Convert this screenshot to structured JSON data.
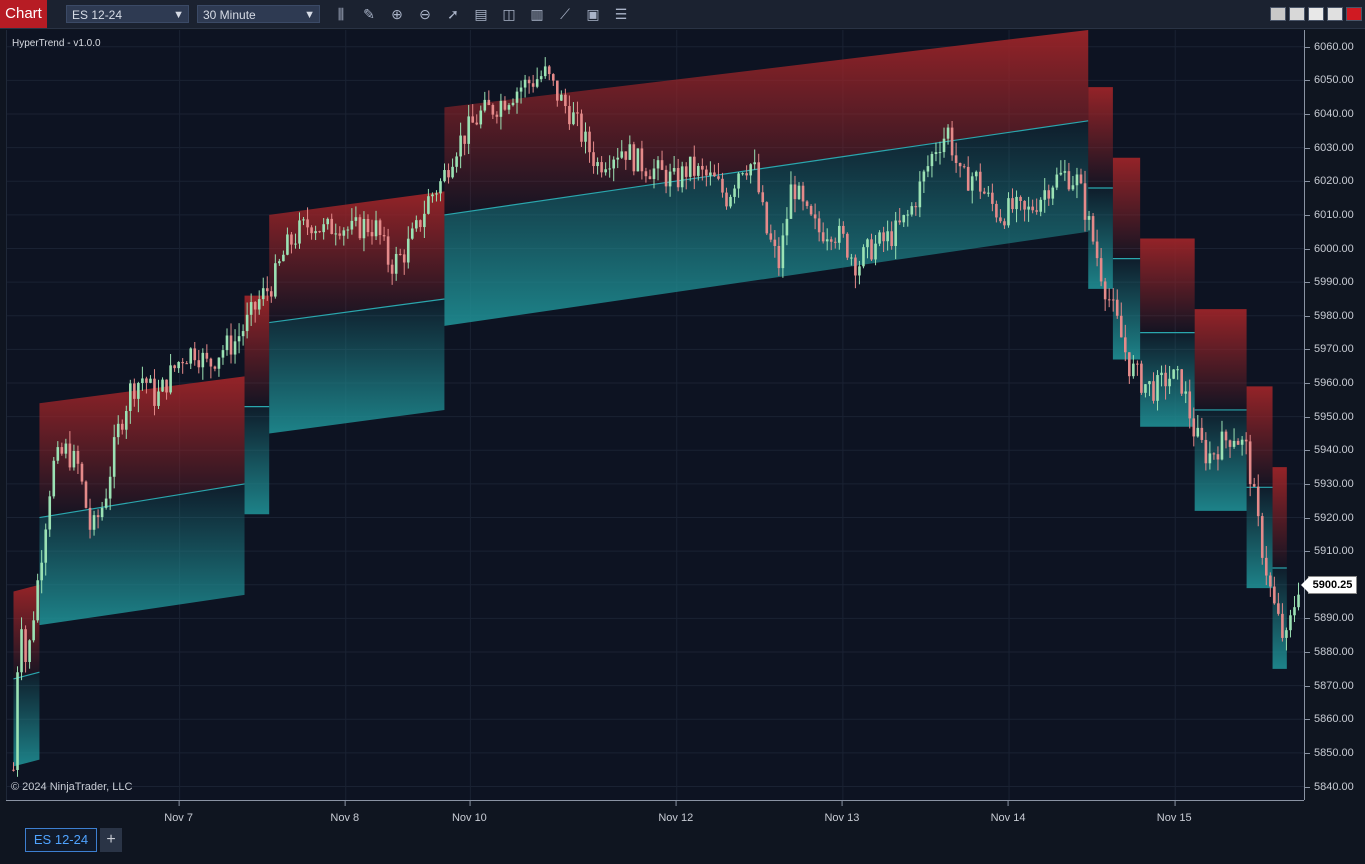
{
  "toolbar": {
    "title": "Chart",
    "instrument": "ES 12-24",
    "interval": "30 Minute",
    "icons": [
      "bar-type-icon",
      "pencil-icon",
      "zoom-in-icon",
      "zoom-out-icon",
      "pointer-icon",
      "data-box-icon",
      "properties-icon",
      "indicators-icon",
      "strategies-icon",
      "templates-icon",
      "list-icon"
    ],
    "window_button_colors": [
      "#c8c8c8",
      "#d8d8d8",
      "#e8e8e8",
      "#e0e0e0",
      "#d01a22"
    ]
  },
  "chart": {
    "indicator_label": "HyperTrend - v1.0.0",
    "copyright": "© 2024 NinjaTrader, LLC",
    "last_price": "5900.25",
    "colors": {
      "background": "#0d1322",
      "bear_band": "#9b2428",
      "bull_band": "#1f8f94",
      "candle_up": "#9be2b4",
      "candle_down": "#e58a8a"
    }
  },
  "chart_data": {
    "type": "candlestick",
    "price_ticks": [
      "6060.00",
      "6050.00",
      "6040.00",
      "6030.00",
      "6020.00",
      "6010.00",
      "6000.00",
      "5990.00",
      "5980.00",
      "5970.00",
      "5960.00",
      "5950.00",
      "5940.00",
      "5930.00",
      "5920.00",
      "5910.00",
      "5900.00",
      "5890.00",
      "5880.00",
      "5870.00",
      "5860.00",
      "5850.00",
      "5840.00"
    ],
    "time_ticks": [
      "Nov 7",
      "Nov 8",
      "Nov 10",
      "Nov 12",
      "Nov 13",
      "Nov 14",
      "Nov 15"
    ],
    "ylim": [
      5836,
      6065
    ],
    "x_domain": [
      0,
      100
    ],
    "time_tick_x": [
      13.3,
      26.1,
      35.7,
      51.6,
      64.4,
      77.2,
      90.0
    ],
    "price_path": [
      [
        0.5,
        5845
      ],
      [
        1.0,
        5895
      ],
      [
        1.5,
        5875
      ],
      [
        2.5,
        5905
      ],
      [
        3.5,
        5935
      ],
      [
        4.5,
        5940
      ],
      [
        5.5,
        5935
      ],
      [
        6.5,
        5915
      ],
      [
        7.5,
        5925
      ],
      [
        8.5,
        5945
      ],
      [
        9.5,
        5958
      ],
      [
        10.5,
        5962
      ],
      [
        11.5,
        5955
      ],
      [
        12.5,
        5962
      ],
      [
        13.5,
        5968
      ],
      [
        14.5,
        5970
      ],
      [
        15.5,
        5965
      ],
      [
        16.5,
        5970
      ],
      [
        17.5,
        5972
      ],
      [
        18.5,
        5978
      ],
      [
        19.5,
        5985
      ],
      [
        20.5,
        5990
      ],
      [
        21.5,
        6000
      ],
      [
        22.5,
        6005
      ],
      [
        23.5,
        6008
      ],
      [
        24.5,
        6005
      ],
      [
        25.5,
        6008
      ],
      [
        26.5,
        6005
      ],
      [
        27.5,
        6007
      ],
      [
        28.5,
        6006
      ],
      [
        29.5,
        5995
      ],
      [
        30.5,
        5998
      ],
      [
        31.5,
        6005
      ],
      [
        32.5,
        6015
      ],
      [
        33.5,
        6020
      ],
      [
        34.5,
        6030
      ],
      [
        35.5,
        6035
      ],
      [
        36.5,
        6040
      ],
      [
        37.5,
        6042
      ],
      [
        38.5,
        6045
      ],
      [
        39.5,
        6048
      ],
      [
        40.5,
        6050
      ],
      [
        41.5,
        6052
      ],
      [
        42.5,
        6045
      ],
      [
        43.5,
        6040
      ],
      [
        44.5,
        6032
      ],
      [
        45.5,
        6025
      ],
      [
        46.5,
        6028
      ],
      [
        47.5,
        6030
      ],
      [
        48.5,
        6026
      ],
      [
        49.5,
        6024
      ],
      [
        50.5,
        6022
      ],
      [
        51.5,
        6020
      ],
      [
        52.5,
        6024
      ],
      [
        53.5,
        6022
      ],
      [
        54.5,
        6020
      ],
      [
        55.5,
        6015
      ],
      [
        56.5,
        6025
      ],
      [
        57.5,
        6025
      ],
      [
        58.5,
        6005
      ],
      [
        59.5,
        5995
      ],
      [
        60.5,
        6020
      ],
      [
        61.5,
        6010
      ],
      [
        62.5,
        6005
      ],
      [
        63.5,
        6006
      ],
      [
        64.5,
        6002
      ],
      [
        65.5,
        5995
      ],
      [
        66.5,
        6000
      ],
      [
        67.5,
        6002
      ],
      [
        68.5,
        6005
      ],
      [
        69.5,
        6010
      ],
      [
        70.5,
        6020
      ],
      [
        71.5,
        6030
      ],
      [
        72.5,
        6035
      ],
      [
        73.5,
        6020
      ],
      [
        74.5,
        6022
      ],
      [
        75.5,
        6015
      ],
      [
        76.5,
        6010
      ],
      [
        77.5,
        6012
      ],
      [
        78.5,
        6010
      ],
      [
        79.5,
        6015
      ],
      [
        80.5,
        6020
      ],
      [
        81.5,
        6022
      ],
      [
        82.5,
        6020
      ],
      [
        83.5,
        6005
      ],
      [
        84.5,
        5990
      ],
      [
        85.5,
        5978
      ],
      [
        86.5,
        5965
      ],
      [
        87.5,
        5960
      ],
      [
        88.5,
        5958
      ],
      [
        89.5,
        5962
      ],
      [
        90.5,
        5960
      ],
      [
        91.5,
        5945
      ],
      [
        92.5,
        5938
      ],
      [
        93.5,
        5942
      ],
      [
        94.5,
        5945
      ],
      [
        95.5,
        5940
      ],
      [
        96.5,
        5915
      ],
      [
        97.5,
        5895
      ],
      [
        98.5,
        5882
      ],
      [
        99.5,
        5900
      ]
    ],
    "bands": [
      {
        "x0": 0.5,
        "x1": 2.5,
        "upper": [
          5898,
          5900
        ],
        "mid": [
          5872,
          5874
        ],
        "lower": [
          5846,
          5848
        ]
      },
      {
        "x0": 2.5,
        "x1": 18.3,
        "upper": [
          5954,
          5962
        ],
        "mid": [
          5920,
          5930
        ],
        "lower": [
          5888,
          5897
        ]
      },
      {
        "x0": 18.3,
        "x1": 20.2,
        "upper": [
          5986,
          5986
        ],
        "mid": [
          5953,
          5953
        ],
        "lower": [
          5921,
          5921
        ]
      },
      {
        "x0": 20.2,
        "x1": 33.7,
        "upper": [
          6010,
          6017
        ],
        "mid": [
          5978,
          5985
        ],
        "lower": [
          5945,
          5952
        ]
      },
      {
        "x0": 33.7,
        "x1": 83.3,
        "upper": [
          6042,
          6065
        ],
        "mid": [
          6010,
          6038
        ],
        "lower": [
          5977,
          6005
        ]
      },
      {
        "x0": 83.3,
        "x1": 85.2,
        "upper": [
          6048,
          6048
        ],
        "mid": [
          6018,
          6018
        ],
        "lower": [
          5988,
          5988
        ]
      },
      {
        "x0": 85.2,
        "x1": 87.3,
        "upper": [
          6027,
          6027
        ],
        "mid": [
          5997,
          5997
        ],
        "lower": [
          5967,
          5967
        ]
      },
      {
        "x0": 87.3,
        "x1": 91.5,
        "upper": [
          6003,
          6003
        ],
        "mid": [
          5975,
          5975
        ],
        "lower": [
          5947,
          5947
        ]
      },
      {
        "x0": 91.5,
        "x1": 95.5,
        "upper": [
          5982,
          5982
        ],
        "mid": [
          5952,
          5952
        ],
        "lower": [
          5922,
          5922
        ]
      },
      {
        "x0": 95.5,
        "x1": 97.5,
        "upper": [
          5959,
          5959
        ],
        "mid": [
          5929,
          5929
        ],
        "lower": [
          5899,
          5899
        ]
      },
      {
        "x0": 97.5,
        "x1": 98.6,
        "upper": [
          5935,
          5935
        ],
        "mid": [
          5905,
          5905
        ],
        "lower": [
          5875,
          5875
        ]
      }
    ]
  },
  "bottom": {
    "tab_label": "ES 12-24",
    "add_label": "+"
  }
}
